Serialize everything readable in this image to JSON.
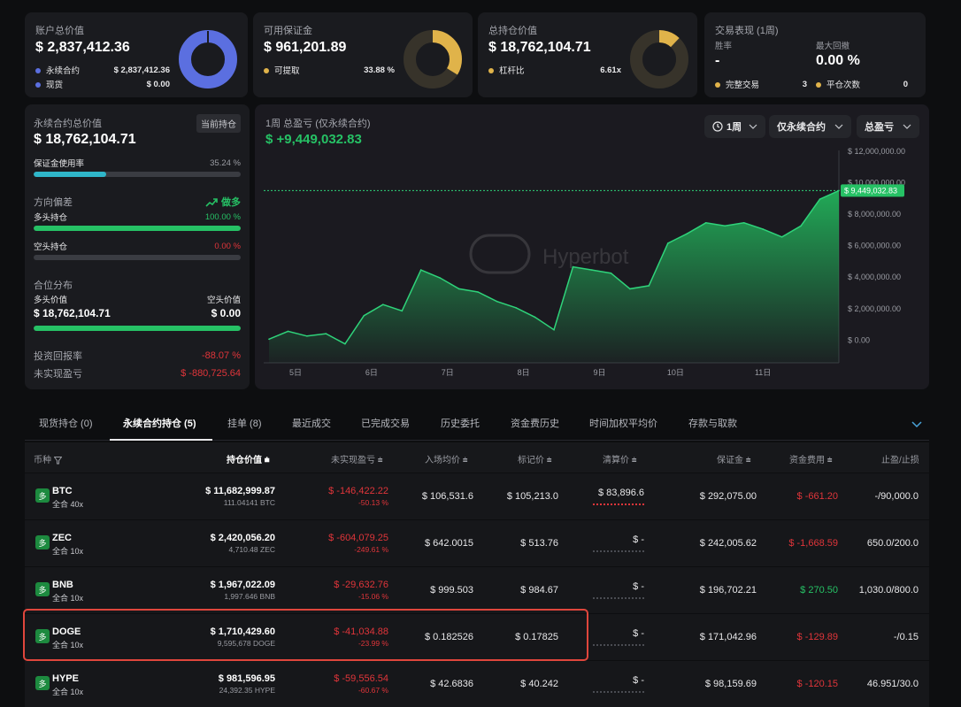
{
  "summary": {
    "account": {
      "title": "账户总价值",
      "value": "$ 2,837,412.36",
      "items": [
        {
          "label": "永续合约",
          "value": "$ 2,837,412.36",
          "color": "#5b6fe0"
        },
        {
          "label": "现货",
          "value": "$ 0.00",
          "color": "#5b6fe0"
        }
      ]
    },
    "margin": {
      "title": "可用保证金",
      "value": "$ 961,201.89",
      "item_label": "可提取",
      "item_value": "33.88 %",
      "color": "#e0b34a",
      "fraction": 0.3388
    },
    "holding": {
      "title": "总持仓价值",
      "value": "$ 18,762,104.71",
      "item_label": "杠杆比",
      "item_value": "6.61x",
      "color": "#e0b34a",
      "fraction": 0.12
    },
    "performance": {
      "title": "交易表现 (1周)",
      "winrate_label": "胜率",
      "winrate_value": "-",
      "drawdown_label": "最大回撤",
      "drawdown_value": "0.00 %",
      "done_label": "完整交易",
      "done_value": "3",
      "close_label": "平仓次数",
      "close_value": "0"
    }
  },
  "perp": {
    "title": "永续合约总价值",
    "badge": "当前持仓",
    "value": "$ 18,762,104.71",
    "usage_label": "保证金使用率",
    "usage_value": "35.24 %",
    "usage_fraction": 0.3524,
    "direction_label": "方向偏差",
    "direction_value": "做多",
    "long_label": "多头持仓",
    "long_value": "100.00 %",
    "long_fraction": 1.0,
    "short_label": "空头持仓",
    "short_value": "0.00 %",
    "short_fraction": 0.0,
    "dist_label": "合位分布",
    "long_val_label": "多头价值",
    "long_val": "$ 18,762,104.71",
    "short_val_label": "空头价值",
    "short_val": "$ 0.00",
    "roi_label": "投资回报率",
    "roi_value": "-88.07 %",
    "upnl_label": "未实现盈亏",
    "upnl_value": "$ -880,725.64"
  },
  "chart_panel": {
    "title": "1周 总盈亏 (仅永续合约)",
    "value": "$ +9,449,032.83",
    "period_btn": "1周",
    "scope_btn": "仅永续合约",
    "metric_btn": "总盈亏",
    "watermark": "Hyperbot"
  },
  "chart_data": {
    "type": "area",
    "x": [
      0,
      0.25,
      0.5,
      0.75,
      1,
      1.25,
      1.5,
      1.75,
      2,
      2.25,
      2.5,
      2.75,
      3,
      3.25,
      3.5,
      3.75,
      4,
      4.25,
      4.5,
      4.75,
      5,
      5.25,
      5.5,
      5.75,
      6,
      6.25,
      6.5,
      6.75,
      7,
      7.25,
      7.5
    ],
    "y": [
      0,
      500000,
      200000,
      350000,
      -300000,
      1500000,
      2200000,
      1800000,
      4400000,
      3900000,
      3200000,
      3000000,
      2400000,
      2000000,
      1400000,
      600000,
      4600000,
      4400000,
      4200000,
      3200000,
      3400000,
      6100000,
      6700000,
      7400000,
      7200000,
      7400000,
      7000000,
      6500000,
      7200000,
      8900000,
      9449032.83
    ],
    "x_ticks": [
      {
        "v": 0.35,
        "label": "5日"
      },
      {
        "v": 1.35,
        "label": "6日"
      },
      {
        "v": 2.35,
        "label": "7日"
      },
      {
        "v": 3.35,
        "label": "8日"
      },
      {
        "v": 4.35,
        "label": "9日"
      },
      {
        "v": 5.35,
        "label": "10日"
      },
      {
        "v": 6.5,
        "label": "11日"
      }
    ],
    "y_ticks": [
      "$ 12,000,000.00",
      "$ 10,000,000.00",
      "$ 8,000,000.00",
      "$ 6,000,000.00",
      "$ 4,000,000.00",
      "$ 2,000,000.00",
      "$ 0.00"
    ],
    "y_tick_values": [
      12000000,
      10000000,
      8000000,
      6000000,
      4000000,
      2000000,
      0
    ],
    "ylim": [
      -1500000,
      12000000
    ],
    "last_label": "$ 9,449,032.83",
    "grid": true
  },
  "tabs": [
    {
      "label": "现货持仓 (0)"
    },
    {
      "label": "永续合约持仓 (5)",
      "active": true
    },
    {
      "label": "挂单 (8)"
    },
    {
      "label": "最近成交"
    },
    {
      "label": "已完成交易"
    },
    {
      "label": "历史委托"
    },
    {
      "label": "资金费历史"
    },
    {
      "label": "时间加权平均价"
    },
    {
      "label": "存款与取款"
    }
  ],
  "columns": {
    "coin": "币种",
    "value": "持仓价值",
    "upnl": "未实现盈亏",
    "entry": "入场均价",
    "mark": "标记价",
    "liq": "清算价",
    "margin": "保证金",
    "funding": "资金费用",
    "tpsl": "止盈/止损"
  },
  "positions": [
    {
      "badge": "多",
      "coin": "BTC",
      "mode": "全合 40x",
      "value": "$ 11,682,999.87",
      "qty": "111.04141 BTC",
      "upnl": "$ -146,422.22",
      "upnl_pct": "-50.13 %",
      "entry": "$ 106,531.6",
      "mark": "$ 105,213.0",
      "liq": "$ 83,896.6",
      "margin": "$ 292,075.00",
      "funding": "$ -661.20",
      "tpsl": "-/90,000.0"
    },
    {
      "badge": "多",
      "coin": "ZEC",
      "mode": "全合 10x",
      "value": "$ 2,420,056.20",
      "qty": "4,710.48 ZEC",
      "upnl": "$ -604,079.25",
      "upnl_pct": "-249.61 %",
      "entry": "$ 642.0015",
      "mark": "$ 513.76",
      "liq": "$ -",
      "margin": "$ 242,005.62",
      "funding": "$ -1,668.59",
      "tpsl": "650.0/200.0"
    },
    {
      "badge": "多",
      "coin": "BNB",
      "mode": "全合 10x",
      "value": "$ 1,967,022.09",
      "qty": "1,997.646 BNB",
      "upnl": "$ -29,632.76",
      "upnl_pct": "-15.06 %",
      "entry": "$ 999.503",
      "mark": "$ 984.67",
      "liq": "$ -",
      "margin": "$ 196,702.21",
      "funding": "$ 270.50",
      "tpsl": "1,030.0/800.0"
    },
    {
      "badge": "多",
      "coin": "DOGE",
      "mode": "全合 10x",
      "value": "$ 1,710,429.60",
      "qty": "9,595,678 DOGE",
      "upnl": "$ -41,034.88",
      "upnl_pct": "-23.99 %",
      "entry": "$ 0.182526",
      "mark": "$ 0.17825",
      "liq": "$ -",
      "margin": "$ 171,042.96",
      "funding": "$ -129.89",
      "tpsl": "-/0.15"
    },
    {
      "badge": "多",
      "coin": "HYPE",
      "mode": "全合 10x",
      "value": "$ 981,596.95",
      "qty": "24,392.35 HYPE",
      "upnl": "$ -59,556.54",
      "upnl_pct": "-60.67 %",
      "entry": "$ 42.6836",
      "mark": "$ 40.242",
      "liq": "$ -",
      "margin": "$ 98,159.69",
      "funding": "$ -120.15",
      "tpsl": "46.951/30.0"
    }
  ],
  "colors": {
    "accent_green": "#26c165",
    "accent_red": "#e0353a",
    "donut_blue": "#5b6fe0",
    "donut_gold": "#e0b34a",
    "highlight": "#e0463c"
  }
}
